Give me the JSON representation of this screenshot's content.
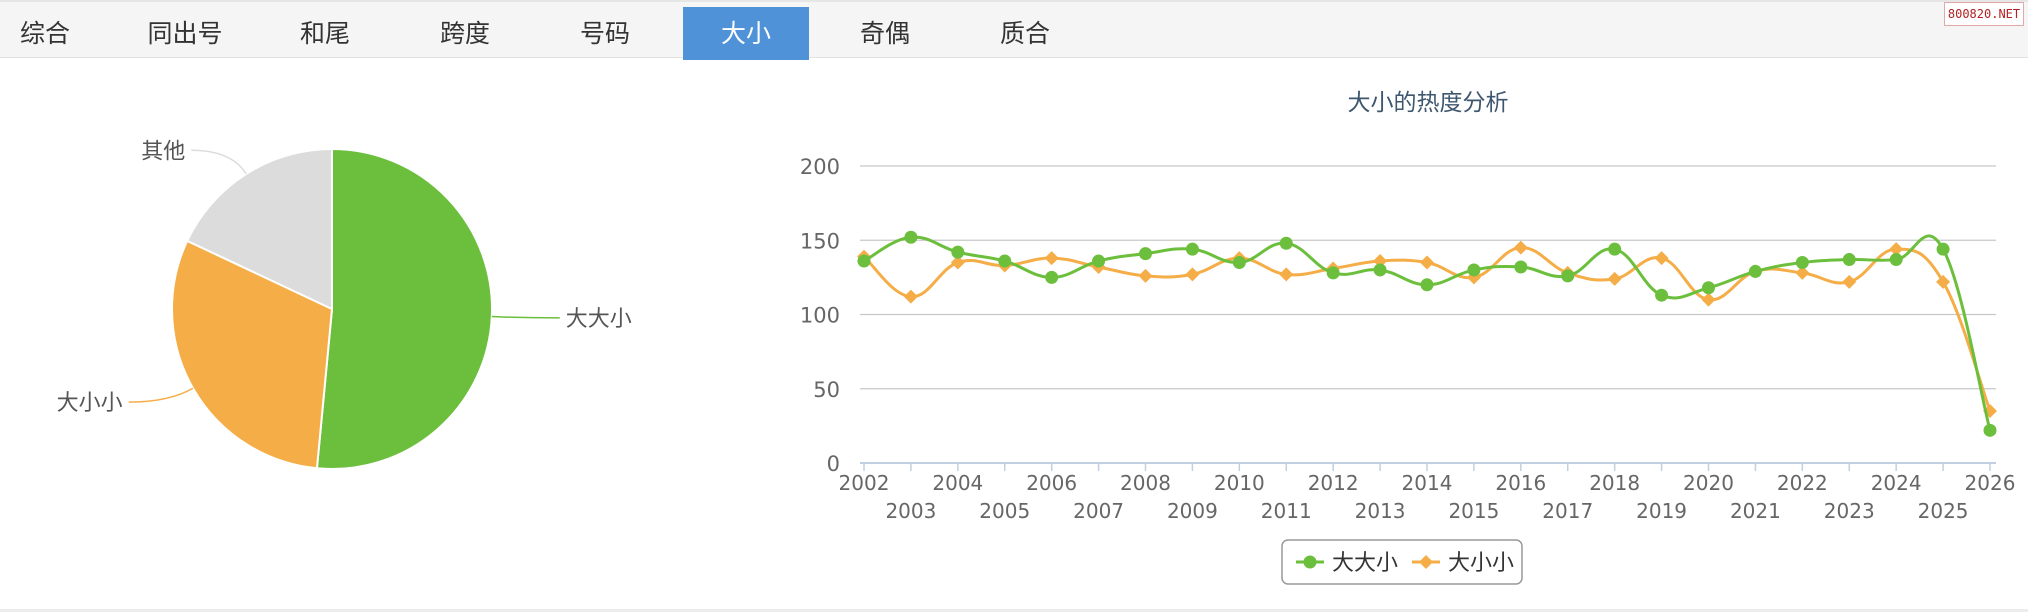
{
  "tabs": [
    {
      "label": "综合",
      "active": false
    },
    {
      "label": "同出号",
      "active": false
    },
    {
      "label": "和尾",
      "active": false
    },
    {
      "label": "跨度",
      "active": false
    },
    {
      "label": "号码",
      "active": false
    },
    {
      "label": "大小",
      "active": true
    },
    {
      "label": "奇偶",
      "active": false
    },
    {
      "label": "质合",
      "active": false
    }
  ],
  "watermark": "800820.NET",
  "colors": {
    "green": "#6cbf3c",
    "orange": "#f5ad47",
    "gray": "#dcdcdc",
    "active_tab": "#4f92d8"
  },
  "chart_data": [
    {
      "type": "pie",
      "slices": [
        {
          "name": "大大小",
          "value": 51.5,
          "color": "#6cbf3c"
        },
        {
          "name": "大小小",
          "value": 30.5,
          "color": "#f5ad47"
        },
        {
          "name": "其他",
          "value": 18.0,
          "color": "#dcdcdc"
        }
      ]
    },
    {
      "type": "line",
      "title": "大小的热度分析",
      "x": [
        "2002",
        "2003",
        "2004",
        "2005",
        "2006",
        "2007",
        "2008",
        "2009",
        "2010",
        "2011",
        "2012",
        "2013",
        "2014",
        "2015",
        "2016",
        "2017",
        "2018",
        "2019",
        "2020",
        "2021",
        "2022",
        "2023",
        "2024",
        "2025",
        "2026"
      ],
      "ylim": [
        0,
        200
      ],
      "yticks": [
        0,
        50,
        100,
        150,
        200
      ],
      "grid": true,
      "legend_position": "bottom-center",
      "series": [
        {
          "name": "大大小",
          "color": "#6cbf3c",
          "marker": "circle",
          "values": [
            136,
            152,
            142,
            136,
            125,
            136,
            141,
            144,
            135,
            148,
            128,
            130,
            120,
            130,
            132,
            126,
            144,
            113,
            118,
            129,
            135,
            137,
            137,
            144,
            22
          ]
        },
        {
          "name": "大小小",
          "color": "#f5ad47",
          "marker": "diamond",
          "values": [
            139,
            112,
            135,
            133,
            138,
            132,
            126,
            127,
            138,
            127,
            131,
            136,
            135,
            125,
            145,
            128,
            124,
            138,
            110,
            129,
            128,
            122,
            144,
            122,
            35
          ]
        }
      ]
    }
  ]
}
